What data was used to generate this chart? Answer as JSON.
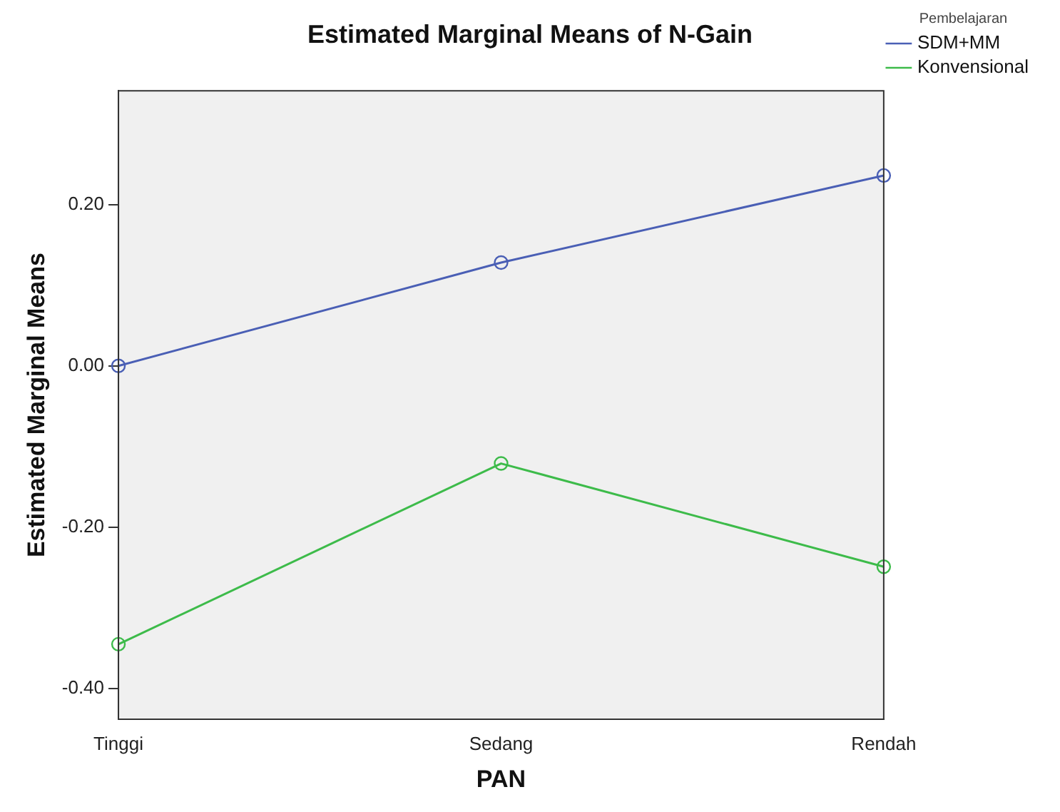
{
  "chart_data": {
    "type": "line",
    "title": "Estimated Marginal Means of N-Gain",
    "xlabel": "PAN",
    "ylabel": "Estimated Marginal Means",
    "legend_title": "Pembelajaran",
    "categories": [
      "Tinggi",
      "Sedang",
      "Rendah"
    ],
    "series": [
      {
        "name": "SDM+MM",
        "color": "#4a5fb5",
        "values": [
          0.0,
          0.128,
          0.236
        ]
      },
      {
        "name": "Konvensional",
        "color": "#3dbb4a",
        "values": [
          -0.345,
          -0.121,
          -0.249
        ]
      }
    ],
    "ylim": [
      -0.438,
      0.341
    ],
    "yticks": [
      {
        "value": -0.4,
        "label": "-0.40"
      },
      {
        "value": -0.2,
        "label": "-0.20"
      },
      {
        "value": 0,
        "label": "0.00"
      },
      {
        "value": 0.2,
        "label": "0.20"
      }
    ],
    "grid": false,
    "legend": "top right",
    "marker": "circle",
    "line_style": "solid"
  }
}
